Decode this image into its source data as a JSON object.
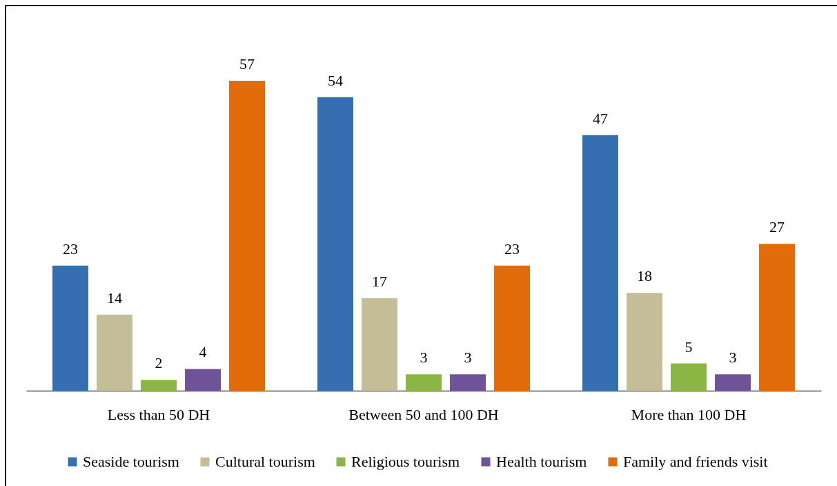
{
  "chart_data": {
    "type": "bar",
    "categories": [
      "Less than 50 DH",
      "Between 50 and 100 DH",
      "More than 100 DH"
    ],
    "series": [
      {
        "name": "Seaside tourism",
        "color": "#356fb2",
        "values": [
          23,
          54,
          47
        ]
      },
      {
        "name": "Cultural tourism",
        "color": "#c4bd97",
        "values": [
          14,
          17,
          18
        ]
      },
      {
        "name": "Religious tourism",
        "color": "#8cb643",
        "values": [
          2,
          3,
          5
        ]
      },
      {
        "name": "Health tourism",
        "color": "#6f5297",
        "values": [
          4,
          3,
          3
        ]
      },
      {
        "name": "Family and friends visit",
        "color": "#e36c0a",
        "values": [
          57,
          23,
          27
        ]
      }
    ],
    "data_labels": true,
    "legend": "bottom"
  }
}
